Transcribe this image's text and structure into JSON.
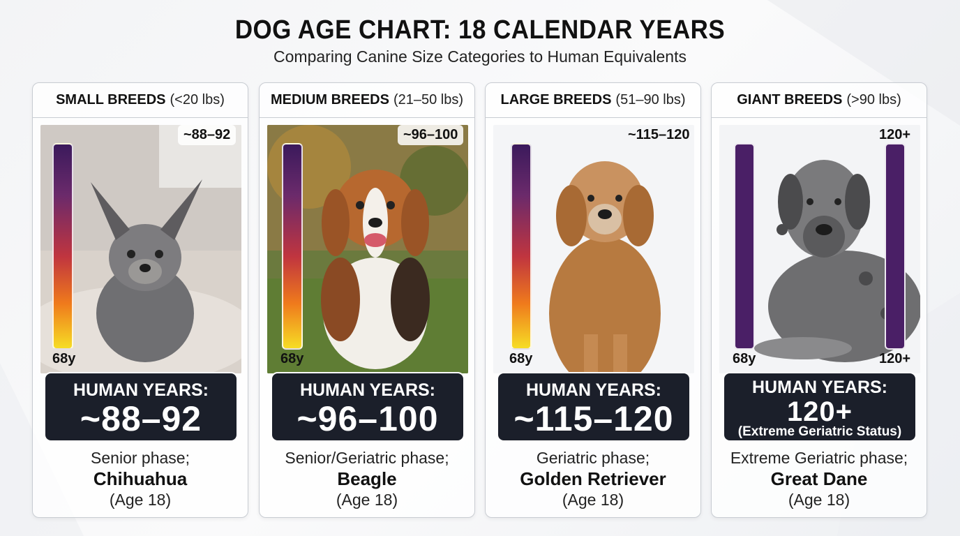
{
  "title": "DOG AGE CHART: 18 CALENDAR YEARS",
  "subtitle": "Comparing Canine Size Categories to Human Equivalents",
  "cards": [
    {
      "category": "SMALL BREEDS",
      "weight": "(<20 lbs)",
      "age_top": "~88–92",
      "age_low": "68y",
      "human_years_label": "HUMAN YEARS:",
      "human_years_value": "~88–92",
      "phase": "Senior phase;",
      "breed": "Chihuahua",
      "age": "(Age 18)"
    },
    {
      "category": "MEDIUM BREEDS",
      "weight": "(21–50 lbs)",
      "age_top": "~96–100",
      "age_low": "68y",
      "human_years_label": "HUMAN YEARS:",
      "human_years_value": "~96–100",
      "phase": "Senior/Geriatric phase;",
      "breed": "Beagle",
      "age": "(Age 18)"
    },
    {
      "category": "LARGE BREEDS",
      "weight": "(51–90 lbs)",
      "age_top": "~115–120",
      "age_low": "68y",
      "human_years_label": "HUMAN YEARS:",
      "human_years_value": "~115–120",
      "phase": "Geriatric phase;",
      "breed": "Golden Retriever",
      "age": "(Age 18)"
    },
    {
      "category": "GIANT BREEDS",
      "weight": "(>90 lbs)",
      "age_top": "120+",
      "age_low": "68y",
      "age_low_right": "120+",
      "human_years_label": "HUMAN YEARS:",
      "human_years_value": "120+",
      "human_years_note": "(Extreme Geriatric Status)",
      "phase": "Extreme Geriatric phase;",
      "breed": "Great Dane",
      "age": "(Age 18)"
    }
  ],
  "colors": {
    "bar_gradient_top": "#3b1a5c",
    "bar_gradient_bottom": "#f6dd25",
    "bar_purple": "#4a1f66",
    "human_box": "#1b1f2a"
  }
}
